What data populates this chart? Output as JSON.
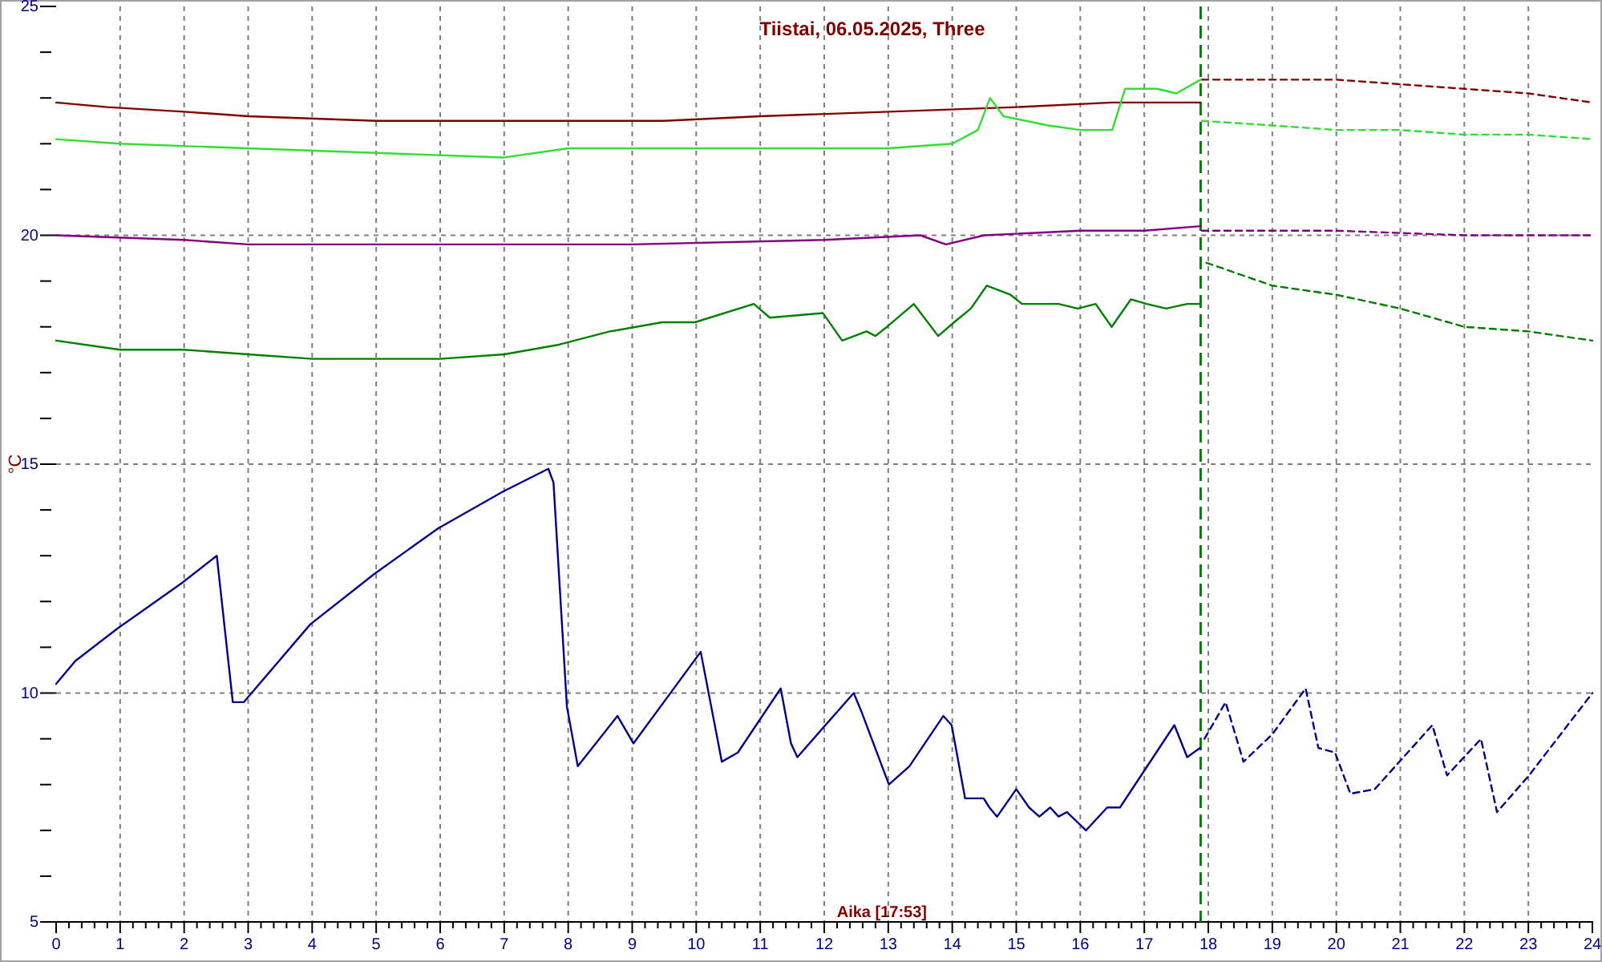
{
  "chart_data": {
    "type": "line",
    "title": "Tiistai, 06.05.2025, Three",
    "xlabel": "Aika [17:53]",
    "ylabel": "°C",
    "xlim": [
      0,
      24
    ],
    "ylim": [
      5,
      25
    ],
    "xticks": [
      0,
      {
        "value": 0.2,
        "label": null
      },
      {
        "value": 0.4,
        "label": null
      },
      {
        "value": 0.6,
        "label": null
      },
      {
        "value": 0.8,
        "label": null
      },
      1,
      {
        "value": 1.2,
        "label": null
      },
      {
        "value": 1.4,
        "label": null
      },
      {
        "value": 1.6,
        "label": null
      },
      {
        "value": 1.8,
        "label": null
      },
      2,
      {
        "value": 2.2,
        "label": null
      },
      {
        "value": 2.4,
        "label": null
      },
      {
        "value": 2.6,
        "label": null
      },
      {
        "value": 2.8,
        "label": null
      },
      3,
      {
        "value": 3.2,
        "label": null
      },
      {
        "value": 3.4,
        "label": null
      },
      {
        "value": 3.6,
        "label": null
      },
      {
        "value": 3.8,
        "label": null
      },
      4,
      {
        "value": 4.2,
        "label": null
      },
      {
        "value": 4.4,
        "label": null
      },
      {
        "value": 4.6,
        "label": null
      },
      {
        "value": 4.8,
        "label": null
      },
      5,
      {
        "value": 5.2,
        "label": null
      },
      {
        "value": 5.4,
        "label": null
      },
      {
        "value": 5.6,
        "label": null
      },
      {
        "value": 5.8,
        "label": null
      },
      6,
      {
        "value": 6.2,
        "label": null
      },
      {
        "value": 6.4,
        "label": null
      },
      {
        "value": 6.6,
        "label": null
      },
      {
        "value": 6.8,
        "label": null
      },
      7,
      {
        "value": 7.2,
        "label": null
      },
      {
        "value": 7.4,
        "label": null
      },
      {
        "value": 7.6,
        "label": null
      },
      {
        "value": 7.8,
        "label": null
      },
      8,
      {
        "value": 8.2,
        "label": null
      },
      {
        "value": 8.4,
        "label": null
      },
      {
        "value": 8.6,
        "label": null
      },
      {
        "value": 8.8,
        "label": null
      },
      9,
      {
        "value": 9.2,
        "label": null
      },
      {
        "value": 9.4,
        "label": null
      },
      {
        "value": 9.6,
        "label": null
      },
      {
        "value": 9.8,
        "label": null
      },
      10,
      {
        "value": 10.2,
        "label": null
      },
      {
        "value": 10.4,
        "label": null
      },
      {
        "value": 10.6,
        "label": null
      },
      {
        "value": 10.8,
        "label": null
      },
      11,
      {
        "value": 11.2,
        "label": null
      },
      {
        "value": 11.4,
        "label": null
      },
      {
        "value": 11.6,
        "label": null
      },
      {
        "value": 11.8,
        "label": null
      },
      12,
      {
        "value": 12.2,
        "label": null
      },
      {
        "value": 12.4,
        "label": null
      },
      {
        "value": 12.6,
        "label": null
      },
      {
        "value": 12.8,
        "label": null
      },
      13,
      {
        "value": 13.2,
        "label": null
      },
      {
        "value": 13.4,
        "label": null
      },
      {
        "value": 13.6,
        "label": null
      },
      {
        "value": 13.8,
        "label": null
      },
      14,
      {
        "value": 14.2,
        "label": null
      },
      {
        "value": 14.4,
        "label": null
      },
      {
        "value": 14.6,
        "label": null
      },
      {
        "value": 14.8,
        "label": null
      },
      15,
      {
        "value": 15.2,
        "label": null
      },
      {
        "value": 15.4,
        "label": null
      },
      {
        "value": 15.6,
        "label": null
      },
      {
        "value": 15.8,
        "label": null
      },
      16,
      {
        "value": 16.2,
        "label": null
      },
      {
        "value": 16.4,
        "label": null
      },
      {
        "value": 16.6,
        "label": null
      },
      {
        "value": 16.8,
        "label": null
      },
      17,
      {
        "value": 17.2,
        "label": null
      },
      {
        "value": 17.4,
        "label": null
      },
      {
        "value": 17.6,
        "label": null
      },
      {
        "value": 17.8,
        "label": null
      },
      18,
      {
        "value": 18.2,
        "label": null
      },
      {
        "value": 18.4,
        "label": null
      },
      {
        "value": 18.6,
        "label": null
      },
      {
        "value": 18.8,
        "label": null
      },
      19,
      {
        "value": 19.2,
        "label": null
      },
      {
        "value": 19.4,
        "label": null
      },
      {
        "value": 19.6,
        "label": null
      },
      {
        "value": 19.8,
        "label": null
      },
      20,
      {
        "value": 20.2,
        "label": null
      },
      {
        "value": 20.4,
        "label": null
      },
      {
        "value": 20.6,
        "label": null
      },
      {
        "value": 20.8,
        "label": null
      },
      21,
      {
        "value": 21.2,
        "label": null
      },
      {
        "value": 21.4,
        "label": null
      },
      {
        "value": 21.6,
        "label": null
      },
      {
        "value": 21.8,
        "label": null
      },
      22,
      {
        "value": 22.2,
        "label": null
      },
      {
        "value": 22.4,
        "label": null
      },
      {
        "value": 22.6,
        "label": null
      },
      {
        "value": 22.8,
        "label": null
      },
      23,
      {
        "value": 23.2,
        "label": null
      },
      {
        "value": 23.4,
        "label": null
      },
      {
        "value": 23.6,
        "label": null
      },
      {
        "value": 23.8,
        "label": null
      },
      24
    ],
    "yticks": [
      5,
      {
        "value": 6,
        "label": null
      },
      {
        "value": 7,
        "label": null
      },
      {
        "value": 8,
        "label": null
      },
      {
        "value": 9,
        "label": null
      },
      10,
      {
        "value": 11,
        "label": null
      },
      {
        "value": 12,
        "label": null
      },
      {
        "value": 13,
        "label": null
      },
      {
        "value": 14,
        "label": null
      },
      15,
      {
        "value": 16,
        "label": null
      },
      {
        "value": 17,
        "label": null
      },
      {
        "value": 18,
        "label": null
      },
      {
        "value": 19,
        "label": null
      },
      20,
      {
        "value": 21,
        "label": null
      },
      {
        "value": 22,
        "label": null
      },
      {
        "value": 23,
        "label": null
      },
      {
        "value": 24,
        "label": null
      },
      25
    ],
    "grid": true,
    "marker": "none",
    "ref_lines": [
      {
        "axis": "x",
        "value": 17.88,
        "color": "#008000",
        "line_style": "dashed"
      }
    ],
    "series": [
      {
        "color": "#800000",
        "line_style": "solid",
        "x": [
          0,
          0.8,
          2,
          3,
          5,
          7,
          8,
          9.5,
          11,
          13,
          15,
          16.5,
          17.88
        ],
        "values": [
          22.9,
          22.8,
          22.7,
          22.6,
          22.5,
          22.5,
          22.5,
          22.5,
          22.6,
          22.7,
          22.8,
          22.9,
          22.9
        ]
      },
      {
        "color": "#800000",
        "line_style": "dashed",
        "x": [
          17.9,
          19,
          20,
          21,
          22,
          23,
          24
        ],
        "values": [
          23.4,
          23.4,
          23.4,
          23.3,
          23.2,
          23.1,
          22.9
        ]
      },
      {
        "color": "#33dd33",
        "line_style": "solid",
        "x": [
          0,
          1,
          3,
          5,
          7,
          8,
          11,
          13,
          14,
          14.4,
          14.59,
          14.8,
          15.5,
          16,
          16.5,
          16.7,
          17.2,
          17.5,
          17.88
        ],
        "values": [
          22.1,
          22.0,
          21.9,
          21.8,
          21.7,
          21.9,
          21.9,
          21.9,
          22.0,
          22.3,
          23.0,
          22.6,
          22.4,
          22.3,
          22.3,
          23.2,
          23.2,
          23.1,
          23.4
        ]
      },
      {
        "color": "#33dd33",
        "line_style": "dashed",
        "x": [
          17.9,
          19,
          20,
          21,
          22,
          23,
          24
        ],
        "values": [
          22.5,
          22.4,
          22.3,
          22.3,
          22.2,
          22.2,
          22.1
        ]
      },
      {
        "color": "#800080",
        "line_style": "solid",
        "x": [
          0,
          2,
          3,
          5,
          8,
          9,
          12,
          13.5,
          13.9,
          14.5,
          16,
          17,
          17.88
        ],
        "values": [
          20.0,
          19.9,
          19.8,
          19.8,
          19.8,
          19.8,
          19.9,
          20.0,
          19.8,
          20.0,
          20.1,
          20.1,
          20.2
        ]
      },
      {
        "color": "#800080",
        "line_style": "dashed",
        "x": [
          17.9,
          20,
          22,
          24
        ],
        "values": [
          20.1,
          20.1,
          20.0,
          20.0
        ]
      },
      {
        "color": "#008000",
        "line_style": "solid",
        "x": [
          0,
          1,
          2,
          3,
          4,
          5,
          6,
          7,
          7.82,
          8.65,
          9.47,
          9.98,
          10.9,
          11.15,
          11.98,
          12.28,
          12.66,
          12.8,
          12.98,
          13.4,
          13.78,
          14.03,
          14.29,
          14.54,
          14.91,
          15.09,
          15.66,
          15.96,
          16.24,
          16.49,
          16.79,
          17.04,
          17.34,
          17.67,
          17.88
        ],
        "values": [
          17.7,
          17.5,
          17.5,
          17.4,
          17.3,
          17.3,
          17.3,
          17.4,
          17.6,
          17.9,
          18.1,
          18.1,
          18.5,
          18.2,
          18.3,
          17.7,
          17.9,
          17.8,
          18.0,
          18.5,
          17.8,
          18.1,
          18.4,
          18.9,
          18.7,
          18.5,
          18.5,
          18.4,
          18.5,
          18.0,
          18.6,
          18.5,
          18.4,
          18.5,
          18.5
        ]
      },
      {
        "color": "#008000",
        "line_style": "dashed",
        "x": [
          17.97,
          19,
          20,
          21,
          22,
          23,
          24
        ],
        "values": [
          19.4,
          18.9,
          18.7,
          18.4,
          18.0,
          17.9,
          17.7
        ]
      },
      {
        "color": "#00008b",
        "line_style": "solid",
        "x": [
          0,
          0.3,
          0.95,
          1.96,
          2.51,
          2.76,
          2.93,
          3.97,
          4.97,
          5.97,
          6.98,
          7.69,
          7.77,
          7.98,
          8.15,
          8.77,
          9.02,
          10.07,
          10.4,
          10.65,
          11.32,
          11.48,
          11.58,
          12.46,
          12.58,
          13.01,
          13.33,
          13.86,
          13.99,
          14.2,
          14.49,
          14.58,
          14.7,
          15.0,
          15.2,
          15.36,
          15.53,
          15.66,
          15.79,
          16.09,
          16.42,
          16.62,
          17.47,
          17.67,
          17.87
        ],
        "values": [
          10.2,
          10.7,
          11.4,
          12.4,
          13.0,
          9.8,
          9.8,
          11.5,
          12.6,
          13.6,
          14.4,
          14.9,
          14.6,
          9.7,
          8.4,
          9.5,
          8.9,
          10.9,
          8.5,
          8.7,
          10.1,
          8.9,
          8.6,
          10.0,
          9.6,
          8.0,
          8.4,
          9.5,
          9.3,
          7.7,
          7.7,
          7.5,
          7.3,
          7.9,
          7.5,
          7.3,
          7.5,
          7.3,
          7.4,
          7.0,
          7.5,
          7.5,
          9.3,
          8.6,
          8.8
        ]
      },
      {
        "color": "#00008b",
        "line_style": "dashed",
        "x": [
          17.94,
          18.27,
          18.55,
          19.0,
          19.52,
          19.72,
          19.98,
          20.22,
          20.6,
          21.5,
          21.73,
          22.26,
          22.51,
          23.01,
          24
        ],
        "values": [
          9.0,
          9.8,
          8.5,
          9.1,
          10.1,
          8.8,
          8.7,
          7.8,
          7.9,
          9.3,
          8.2,
          9.0,
          7.4,
          8.2,
          10.0
        ]
      }
    ]
  }
}
